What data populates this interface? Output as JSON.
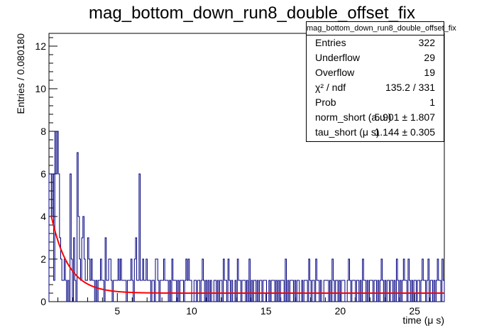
{
  "chart_data": {
    "type": "histogram",
    "title": "mag_bottom_down_run8_double_offset_fix",
    "xlabel": "time (μ s)",
    "ylabel": "Entries / 0.080180",
    "xlim": [
      0.4,
      27.0
    ],
    "ylim": [
      0,
      12.6
    ],
    "x_ticks": [
      5,
      10,
      15,
      20,
      25
    ],
    "y_ticks": [
      0,
      2,
      4,
      6,
      8,
      10,
      12
    ],
    "bin_width": 0.08018,
    "histogram_color": "#000080",
    "fit_color": "#ff0000",
    "histogram_counts": [
      6,
      6,
      4,
      6,
      1,
      8,
      6,
      8,
      6,
      3,
      2,
      1,
      1,
      2,
      1,
      0,
      1,
      0,
      6,
      2,
      0,
      3,
      1,
      0,
      7,
      4,
      2,
      1,
      3,
      4,
      2,
      1,
      1,
      3,
      2,
      1,
      2,
      1,
      1,
      0,
      1,
      0,
      1,
      1,
      2,
      1,
      1,
      0,
      3,
      1,
      1,
      2,
      2,
      1,
      0,
      1,
      1,
      1,
      1,
      2,
      1,
      2,
      1,
      1,
      1,
      1,
      0,
      1,
      1,
      1,
      2,
      1,
      0,
      2,
      3,
      1,
      1,
      6,
      1,
      1,
      2,
      1,
      1,
      2,
      1,
      1,
      1,
      0,
      1,
      1,
      0,
      2,
      2,
      1,
      0,
      1,
      1,
      1,
      2,
      1,
      1,
      1,
      0,
      1,
      0,
      2,
      1,
      1,
      1,
      0,
      1,
      0,
      1,
      1,
      1,
      0,
      1,
      2,
      1,
      2,
      1,
      1,
      0,
      0,
      1,
      1,
      0,
      1,
      1,
      0,
      1,
      2,
      1,
      0,
      1,
      0,
      1,
      0,
      1,
      0,
      0,
      1,
      1,
      0,
      1,
      0,
      1,
      1,
      0,
      2,
      1,
      1,
      0,
      2,
      1,
      0,
      1,
      0,
      0,
      1,
      0,
      2,
      1,
      1,
      0,
      1,
      1,
      1,
      0,
      1,
      0,
      2,
      0,
      1,
      0,
      1,
      1,
      0,
      1,
      0,
      1,
      1,
      0,
      1,
      1,
      1,
      0,
      0,
      1,
      0,
      1,
      1,
      1,
      0,
      1,
      0,
      1,
      0,
      1,
      1,
      1,
      0,
      2,
      0,
      1,
      0,
      1,
      1,
      1,
      0,
      1,
      0,
      1,
      1,
      0,
      0,
      1,
      0,
      1,
      1,
      1,
      0,
      2,
      1,
      0,
      1,
      1,
      0,
      2,
      1,
      1,
      0,
      1,
      0,
      0,
      1,
      1,
      1,
      1,
      0,
      1,
      0,
      2,
      1,
      0,
      1,
      1,
      0,
      1,
      0,
      1,
      1,
      1,
      0,
      0,
      1,
      2,
      1,
      0,
      1,
      1,
      1,
      0,
      1,
      1,
      0,
      1,
      0,
      2,
      1,
      1,
      0,
      1,
      0,
      1,
      1,
      1,
      0,
      1,
      1,
      0,
      1,
      0,
      1,
      2,
      1,
      0,
      1,
      0,
      1,
      1,
      0,
      1,
      1,
      0,
      1,
      0,
      2,
      1,
      0,
      1,
      0,
      1,
      2,
      1,
      1,
      0,
      2,
      1,
      0,
      1,
      0,
      1,
      1,
      0,
      1,
      1,
      0,
      1,
      2,
      1,
      1,
      0,
      1,
      2,
      0,
      1,
      1,
      0,
      1,
      0,
      1,
      2,
      1,
      1,
      0,
      2,
      1
    ],
    "fit": {
      "function": "norm_short * exp(-t/tau_short) + offset",
      "norm_short": 5.901,
      "tau_short": 1.144,
      "offset": 0.4,
      "x_range": [
        0.55,
        27.0
      ]
    },
    "stats": {
      "title": "mag_bottom_down_run8_double_offset_fix",
      "rows": [
        {
          "label": "Entries",
          "value": "322"
        },
        {
          "label": "Underflow",
          "value": "29"
        },
        {
          "label": "Overflow",
          "value": "19"
        },
        {
          "label": "χ² / ndf",
          "value": "135.2 / 331"
        },
        {
          "label": "Prob",
          "value": "1"
        },
        {
          "label": "norm_short (a.u.)",
          "value": "5.901 ± 1.807"
        },
        {
          "label": "tau_short (μ s)",
          "value": "1.144 ± 0.305"
        }
      ]
    }
  }
}
